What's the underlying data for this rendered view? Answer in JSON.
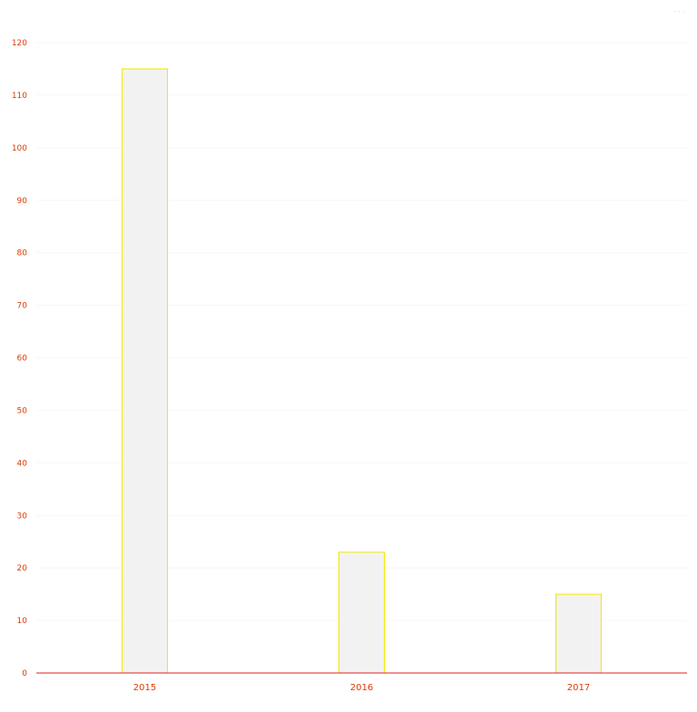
{
  "chart_data": {
    "type": "bar",
    "categories": [
      "2015",
      "2016",
      "2017"
    ],
    "values": [
      115,
      23,
      15
    ],
    "title": "",
    "xlabel": "",
    "ylabel": "",
    "ylim": [
      0,
      120
    ],
    "yticks": [
      0,
      10,
      20,
      30,
      40,
      50,
      60,
      70,
      80,
      90,
      100,
      110,
      120
    ],
    "grid": true,
    "legend": "none"
  },
  "colors": {
    "bar_fill": "#f2f2f2",
    "bar_stroke": "#f5e600",
    "tick_label": "#e03a00",
    "baseline": "#e02020",
    "grid": "#f7f7f7"
  },
  "menu_icon": "ellipsis-icon"
}
